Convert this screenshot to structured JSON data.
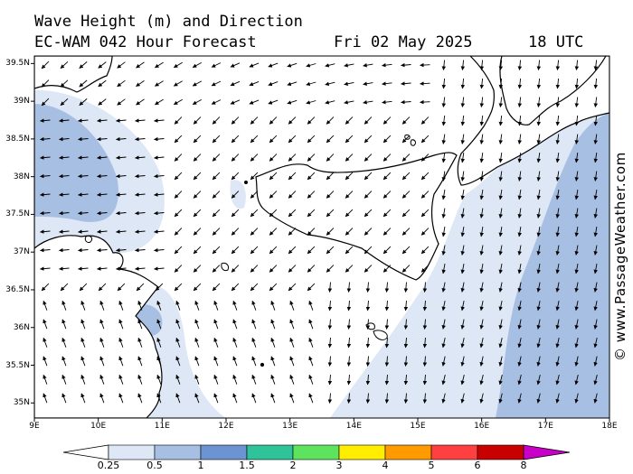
{
  "header": {
    "title": "Wave Height (m) and Direction",
    "model": "EC-WAM 042 Hour Forecast",
    "date": "Fri 02 May 2025",
    "time": "18 UTC"
  },
  "credit": "© www.PassageWeather.com",
  "map": {
    "lon_range": [
      9,
      18
    ],
    "lat_range": [
      34.8,
      39.6
    ],
    "lat_labels": [
      "39.5N",
      "39N",
      "38.5N",
      "38N",
      "37.5N",
      "37N",
      "36.5N",
      "36N",
      "35.5N",
      "35N"
    ],
    "lon_labels": [
      "9E",
      "10E",
      "11E",
      "12E",
      "13E",
      "14E",
      "15E",
      "16E",
      "17E",
      "18E"
    ],
    "land_color": "#ffffff",
    "coast_color": "#000000"
  },
  "colorbar": {
    "labels": [
      "0.25",
      "0.5",
      "1",
      "1.5",
      "2",
      "3",
      "4",
      "5",
      "6",
      "8"
    ],
    "colors": [
      "#ffffff",
      "#dde7f5",
      "#a7bfe3",
      "#6c93d2",
      "#2fc39a",
      "#5ee35e",
      "#ffee00",
      "#ff9a00",
      "#ff4040",
      "#c80000",
      "#c800c8"
    ]
  }
}
